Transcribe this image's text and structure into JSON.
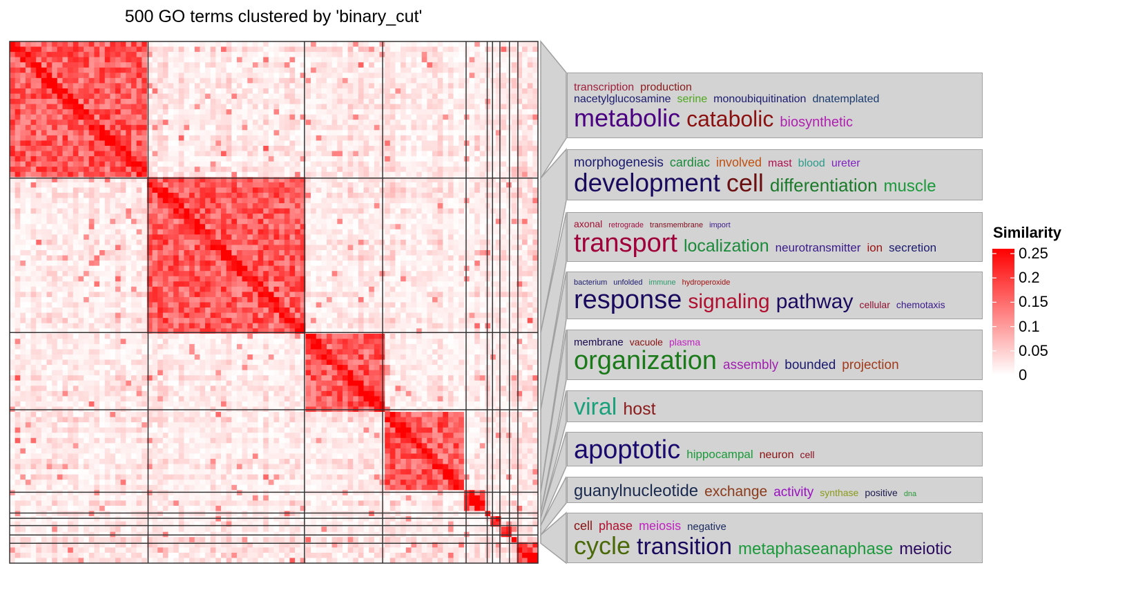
{
  "chart_data": {
    "type": "heatmap",
    "title": "500 GO terms clustered by 'binary_cut'",
    "n_terms": 500,
    "cluster_sizes": [
      131,
      148,
      74,
      79,
      20,
      5,
      7,
      9,
      8,
      19
    ],
    "color_scale": {
      "title": "Similarity",
      "min": 0,
      "max": 0.25,
      "low_color": "#ffffff",
      "high_color": "#ff0000",
      "ticks": [
        "0.25",
        "0.2",
        "0.15",
        "0.1",
        "0.05",
        "0"
      ],
      "tick_values": [
        0.25,
        0.2,
        0.15,
        0.1,
        0.05,
        0
      ]
    },
    "legend_position": "right",
    "word_clouds": [
      {
        "lines": [
          [
            [
              "transcription",
              "#a0203c",
              16
            ],
            [
              "production",
              "#8b1a1a",
              16
            ]
          ],
          [
            [
              "nacetylglucosamine",
              "#1a1a6e",
              16
            ],
            [
              "serine",
              "#4ca81a",
              16
            ],
            [
              "monoubiquitination",
              "#1a1a6e",
              16
            ],
            [
              "dnatemplated",
              "#1a3a6e",
              16
            ]
          ],
          [
            [
              "metabolic",
              "#4b0082",
              36
            ],
            [
              "catabolic",
              "#8b1010",
              32
            ],
            [
              "biosynthetic",
              "#b020b0",
              20
            ]
          ]
        ]
      },
      {
        "lines": [
          [
            [
              "morphogenesis",
              "#1a1a6e",
              19
            ],
            [
              "cardiac",
              "#1a8a3a",
              18
            ],
            [
              "involved",
              "#c05010",
              18
            ],
            [
              "mast",
              "#b01050",
              16
            ],
            [
              "blood",
              "#2a9a8a",
              16
            ],
            [
              "ureter",
              "#8020c0",
              16
            ]
          ],
          [
            [
              "development",
              "#1a0a5e",
              37
            ],
            [
              "cell",
              "#6a1010",
              36
            ],
            [
              "differentiation",
              "#1a7a2a",
              26
            ],
            [
              "muscle",
              "#1a9a3a",
              24
            ]
          ]
        ]
      },
      {
        "lines": [
          [
            [
              "axonal",
              "#a01030",
              14
            ],
            [
              "retrograde",
              "#a01040",
              11
            ],
            [
              "transmembrane",
              "#801020",
              11
            ],
            [
              "import",
              "#3a1a8a",
              11
            ]
          ],
          [
            [
              "transport",
              "#a0003a",
              38
            ],
            [
              "localization",
              "#1a8a3a",
              25
            ],
            [
              "neurotransmitter",
              "#3a1a8a",
              17
            ],
            [
              "ion",
              "#9a1010",
              17
            ],
            [
              "secretion",
              "#1a1a6e",
              17
            ]
          ]
        ]
      },
      {
        "lines": [
          [
            [
              "bacterium",
              "#1a1a6e",
              11
            ],
            [
              "unfolded",
              "#1a1a6e",
              11
            ],
            [
              "immune",
              "#2a9a6a",
              11
            ],
            [
              "hydroperoxide",
              "#a01010",
              11
            ]
          ],
          [
            [
              "response",
              "#1a0a5e",
              38
            ],
            [
              "signaling",
              "#b01030",
              30
            ],
            [
              "pathway",
              "#1a0a5e",
              30
            ],
            [
              "cellular",
              "#901030",
              14
            ],
            [
              "chemotaxis",
              "#3a1a8a",
              14
            ]
          ]
        ]
      },
      {
        "lines": [
          [
            [
              "membrane",
              "#1a0a4e",
              15
            ],
            [
              "vacuole",
              "#8b1010",
              14
            ],
            [
              "plasma",
              "#c020c0",
              14
            ]
          ],
          [
            [
              "organization",
              "#1a7a1a",
              38
            ],
            [
              "assembly",
              "#a020b0",
              19
            ],
            [
              "bounded",
              "#1a1a6e",
              19
            ],
            [
              "projection",
              "#a03a1a",
              19
            ]
          ]
        ]
      },
      {
        "lines": [
          [
            [
              "viral",
              "#1aa07a",
              34
            ],
            [
              "host",
              "#8b1a1a",
              25
            ]
          ]
        ]
      },
      {
        "lines": [
          [
            [
              "apoptotic",
              "#1a0a6e",
              38
            ],
            [
              "hippocampal",
              "#1a9a3a",
              17
            ],
            [
              "neuron",
              "#8b1010",
              16
            ],
            [
              "cell",
              "#8b1020",
              14
            ]
          ]
        ]
      },
      {
        "lines": [
          [
            [
              "guanylnucleotide",
              "#1a2a4e",
              24
            ],
            [
              "exchange",
              "#8b3a1a",
              21
            ],
            [
              "activity",
              "#9a10c0",
              19
            ],
            [
              "synthase",
              "#8a9a1a",
              14
            ],
            [
              "positive",
              "#1a1a4e",
              14
            ],
            [
              "dna",
              "#2a9a3a",
              11
            ]
          ]
        ]
      },
      {
        "lines": [
          [
            [
              "cell",
              "#8b1010",
              18
            ],
            [
              "phase",
              "#b01030",
              18
            ],
            [
              "meiosis",
              "#c020c0",
              18
            ],
            [
              "negative",
              "#1a2a5e",
              15
            ]
          ],
          [
            [
              "cycle",
              "#4a6a0a",
              36
            ],
            [
              "transition",
              "#1a0a5e",
              34
            ],
            [
              "metaphaseanaphase",
              "#1a9a3a",
              24
            ],
            [
              "meiotic",
              "#2a0a5e",
              24
            ]
          ]
        ]
      }
    ]
  }
}
